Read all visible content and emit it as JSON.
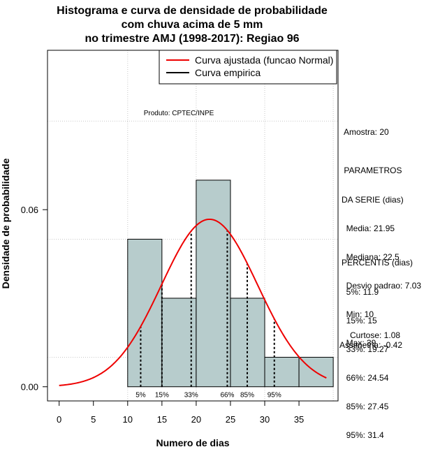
{
  "chart_data": {
    "type": "bar",
    "title_lines": [
      "Histograma e curva de densidade de probabilidade",
      "com chuva acima de 5 mm",
      "no trimestre AMJ (1998-2017): Regiao 96"
    ],
    "xlabel": "Numero de dias",
    "ylabel": "Densidade de probabilidade",
    "x_ticks": [
      0,
      5,
      10,
      15,
      20,
      25,
      30,
      35
    ],
    "y_ticks": [
      "0.00",
      "0.06"
    ],
    "y_tick_values": [
      0,
      0.06
    ],
    "xlim": [
      -1.7,
      40.7
    ],
    "ylim": [
      -0.0048,
      0.114
    ],
    "grid": true,
    "histogram": {
      "bins": [
        {
          "x0": 10,
          "x1": 15,
          "density": 0.05
        },
        {
          "x0": 15,
          "x1": 20,
          "density": 0.03
        },
        {
          "x0": 20,
          "x1": 25,
          "density": 0.07
        },
        {
          "x0": 25,
          "x1": 30,
          "density": 0.03
        },
        {
          "x0": 30,
          "x1": 35,
          "density": 0.01
        },
        {
          "x0": 35,
          "x1": 40,
          "density": 0.01
        }
      ],
      "fill_color": "#b7cccc"
    },
    "normal_curve": {
      "mean": 21.95,
      "sd": 7.03,
      "x_range": [
        0,
        39
      ],
      "color": "#ee0000"
    },
    "percentiles": [
      {
        "label": "5%",
        "value": 11.9
      },
      {
        "label": "15%",
        "value": 15
      },
      {
        "label": "33%",
        "value": 19.27
      },
      {
        "label": "66%",
        "value": 24.54
      },
      {
        "label": "85%",
        "value": 27.45
      },
      {
        "label": "95%",
        "value": 31.4
      }
    ],
    "legend": [
      {
        "label": "Curva ajustada (funcao Normal)",
        "color": "#ee0000"
      },
      {
        "label": "Curva empirica",
        "color": "#000000"
      }
    ],
    "legend_position": "top-right",
    "annotation": "Produto: CPTEC/INPE"
  },
  "stats": {
    "amostra": "Amostra: 20",
    "params_lines": [
      " PARAMETROS",
      "DA SERIE (dias)",
      "  Media: 21.95",
      "  Mediana: 22.5",
      "  Desvio padrao: 7.03",
      "  Min: 10",
      "  Max: 39"
    ],
    "percentis_lines": [
      "PERCENTIS (dias)",
      "  5%: 11.9",
      "  15%: 15",
      "  33%: 19.27",
      "  66%: 24.54",
      "  85%: 27.45",
      "  95%: 31.4"
    ],
    "curtose": "Curtose: 1.08",
    "assimetria": "Assimetria: -0.42"
  }
}
